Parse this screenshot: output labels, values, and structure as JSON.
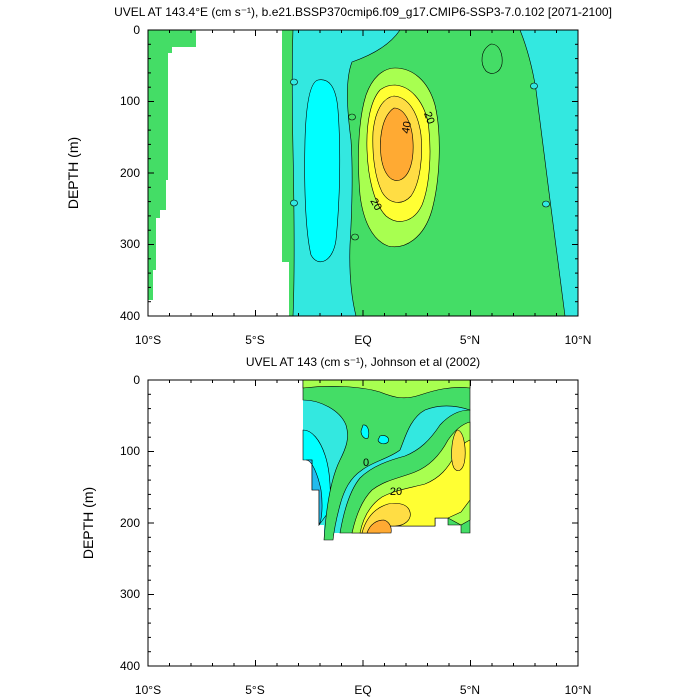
{
  "chart_data": [
    {
      "type": "contour",
      "title": "UVEL AT 143.4°E (cm s⁻¹), b.e21.BSSP370cmip6.f09_g17.CMIP6-SSP3-7.0.102 [2071-2100]",
      "ylabel": "DEPTH (m)",
      "xlim": [
        -10,
        10
      ],
      "ylim": [
        400,
        0
      ],
      "x_ticks": [
        "10°S",
        "5°S",
        "EQ",
        "5°N",
        "10°N"
      ],
      "y_ticks": [
        "0",
        "100",
        "200",
        "300",
        "400"
      ],
      "contour_labels": [
        "0",
        "0",
        "0",
        "0",
        "0",
        "0",
        "20",
        "20",
        "40"
      ],
      "contour_interval": 10,
      "colors": {
        "neg10_0": "#33e8e0",
        "neg20_neg10": "#00ffff",
        "0_10": "#44dd66",
        "10_20": "#a8ff50",
        "20_30": "#ffff33",
        "30_40": "#ffdd44",
        "40_50": "#ffaa33"
      }
    },
    {
      "type": "contour",
      "title": "UVEL AT 143 (cm s⁻¹), Johnson et al (2002)",
      "ylabel": "DEPTH (m)",
      "xlim": [
        -10,
        10
      ],
      "ylim": [
        400,
        0
      ],
      "x_ticks": [
        "10°S",
        "5°S",
        "EQ",
        "5°N",
        "10°N"
      ],
      "y_ticks": [
        "0",
        "100",
        "200",
        "300",
        "400"
      ],
      "contour_labels": [
        "0",
        "20"
      ],
      "data_extent_lat": [
        -2.7,
        5
      ],
      "data_extent_depth": [
        0,
        225
      ]
    }
  ]
}
